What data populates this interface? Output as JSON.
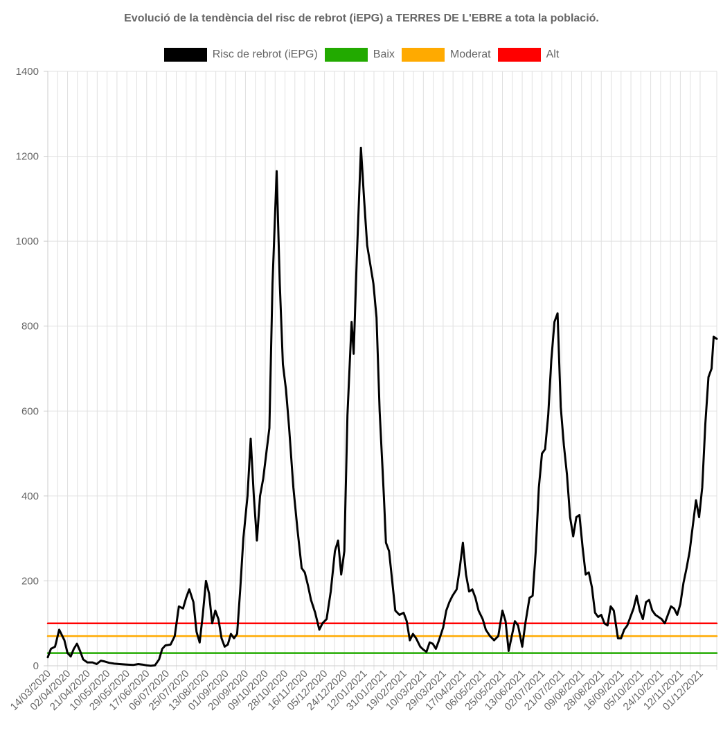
{
  "chart_data": {
    "type": "line",
    "title": "Evolució de la tendència del risc de rebrot (iEPG) a TERRES DE L'EBRE a tota la població.",
    "xlabel": "",
    "ylabel": "",
    "ylim": [
      0,
      1400
    ],
    "yticks": [
      0,
      200,
      400,
      600,
      800,
      1000,
      1200,
      1400
    ],
    "grid": true,
    "legend_position": "top",
    "x_range": [
      "14/03/2020",
      "17/12/2021"
    ],
    "x_tick_labels": [
      "14/03/2020",
      "02/04/2020",
      "21/04/2020",
      "10/05/2020",
      "29/05/2020",
      "17/06/2020",
      "06/07/2020",
      "25/07/2020",
      "13/08/2020",
      "01/09/2020",
      "20/09/2020",
      "09/10/2020",
      "28/10/2020",
      "16/11/2020",
      "05/12/2020",
      "24/12/2020",
      "12/01/2021",
      "31/01/2021",
      "19/02/2021",
      "10/03/2021",
      "29/03/2021",
      "17/04/2021",
      "06/05/2021",
      "25/05/2021",
      "13/06/2021",
      "02/07/2021",
      "21/07/2021",
      "09/08/2021",
      "28/08/2021",
      "16/09/2021",
      "05/10/2021",
      "24/10/2021",
      "12/11/2021",
      "01/12/2021"
    ],
    "series": [
      {
        "name": "Risc de rebrot (iEPG)",
        "color": "#000000",
        "points": [
          [
            "14/03/2020",
            20
          ],
          [
            "17/03/2020",
            40
          ],
          [
            "21/03/2020",
            45
          ],
          [
            "25/03/2020",
            85
          ],
          [
            "30/03/2020",
            60
          ],
          [
            "02/04/2020",
            30
          ],
          [
            "05/04/2020",
            22
          ],
          [
            "08/04/2020",
            40
          ],
          [
            "11/04/2020",
            52
          ],
          [
            "14/04/2020",
            35
          ],
          [
            "17/04/2020",
            15
          ],
          [
            "21/04/2020",
            8
          ],
          [
            "26/04/2020",
            8
          ],
          [
            "30/04/2020",
            4
          ],
          [
            "04/05/2020",
            12
          ],
          [
            "08/05/2020",
            10
          ],
          [
            "12/05/2020",
            7
          ],
          [
            "17/05/2020",
            5
          ],
          [
            "22/05/2020",
            4
          ],
          [
            "29/05/2020",
            3
          ],
          [
            "04/06/2020",
            2
          ],
          [
            "09/06/2020",
            4
          ],
          [
            "13/06/2020",
            3
          ],
          [
            "17/06/2020",
            1
          ],
          [
            "21/06/2020",
            0
          ],
          [
            "25/06/2020",
            1
          ],
          [
            "29/06/2020",
            15
          ],
          [
            "02/07/2020",
            40
          ],
          [
            "05/07/2020",
            48
          ],
          [
            "10/07/2020",
            50
          ],
          [
            "14/07/2020",
            70
          ],
          [
            "18/07/2020",
            140
          ],
          [
            "22/07/2020",
            135
          ],
          [
            "25/07/2020",
            160
          ],
          [
            "28/07/2020",
            180
          ],
          [
            "01/08/2020",
            150
          ],
          [
            "04/08/2020",
            80
          ],
          [
            "07/08/2020",
            55
          ],
          [
            "10/08/2020",
            120
          ],
          [
            "13/08/2020",
            200
          ],
          [
            "16/08/2020",
            170
          ],
          [
            "19/08/2020",
            100
          ],
          [
            "22/08/2020",
            130
          ],
          [
            "25/08/2020",
            110
          ],
          [
            "28/08/2020",
            65
          ],
          [
            "31/08/2020",
            45
          ],
          [
            "03/09/2020",
            50
          ],
          [
            "06/09/2020",
            75
          ],
          [
            "09/09/2020",
            65
          ],
          [
            "12/09/2020",
            75
          ],
          [
            "15/09/2020",
            180
          ],
          [
            "18/09/2020",
            300
          ],
          [
            "22/09/2020",
            400
          ],
          [
            "25/09/2020",
            535
          ],
          [
            "28/09/2020",
            400
          ],
          [
            "01/10/2020",
            295
          ],
          [
            "04/10/2020",
            400
          ],
          [
            "07/10/2020",
            440
          ],
          [
            "10/10/2020",
            500
          ],
          [
            "13/10/2020",
            560
          ],
          [
            "16/10/2020",
            900
          ],
          [
            "20/10/2020",
            1165
          ],
          [
            "23/10/2020",
            900
          ],
          [
            "26/10/2020",
            710
          ],
          [
            "29/10/2020",
            650
          ],
          [
            "01/11/2020",
            560
          ],
          [
            "05/11/2020",
            420
          ],
          [
            "09/11/2020",
            320
          ],
          [
            "13/11/2020",
            230
          ],
          [
            "16/11/2020",
            220
          ],
          [
            "19/11/2020",
            190
          ],
          [
            "22/11/2020",
            155
          ],
          [
            "26/11/2020",
            125
          ],
          [
            "30/11/2020",
            85
          ],
          [
            "03/12/2020",
            100
          ],
          [
            "07/12/2020",
            110
          ],
          [
            "11/12/2020",
            175
          ],
          [
            "15/12/2020",
            270
          ],
          [
            "18/12/2020",
            295
          ],
          [
            "21/12/2020",
            215
          ],
          [
            "24/12/2020",
            270
          ],
          [
            "27/12/2020",
            590
          ],
          [
            "31/12/2020",
            810
          ],
          [
            "02/01/2021",
            735
          ],
          [
            "05/01/2021",
            960
          ],
          [
            "09/01/2021",
            1220
          ],
          [
            "12/01/2021",
            1100
          ],
          [
            "15/01/2021",
            990
          ],
          [
            "18/01/2021",
            945
          ],
          [
            "21/01/2021",
            900
          ],
          [
            "24/01/2021",
            820
          ],
          [
            "27/01/2021",
            600
          ],
          [
            "31/01/2021",
            400
          ],
          [
            "02/02/2021",
            290
          ],
          [
            "05/02/2021",
            270
          ],
          [
            "08/02/2021",
            200
          ],
          [
            "11/02/2021",
            130
          ],
          [
            "15/02/2021",
            120
          ],
          [
            "19/02/2021",
            125
          ],
          [
            "22/02/2021",
            105
          ],
          [
            "25/02/2021",
            60
          ],
          [
            "28/02/2021",
            75
          ],
          [
            "03/03/2021",
            65
          ],
          [
            "07/03/2021",
            45
          ],
          [
            "10/03/2021",
            38
          ],
          [
            "13/03/2021",
            33
          ],
          [
            "16/03/2021",
            55
          ],
          [
            "19/03/2021",
            52
          ],
          [
            "22/03/2021",
            40
          ],
          [
            "25/03/2021",
            60
          ],
          [
            "29/03/2021",
            90
          ],
          [
            "01/04/2021",
            130
          ],
          [
            "04/04/2021",
            150
          ],
          [
            "07/04/2021",
            165
          ],
          [
            "11/04/2021",
            180
          ],
          [
            "14/04/2021",
            230
          ],
          [
            "17/04/2021",
            290
          ],
          [
            "20/04/2021",
            215
          ],
          [
            "23/04/2021",
            175
          ],
          [
            "26/04/2021",
            180
          ],
          [
            "29/04/2021",
            160
          ],
          [
            "02/05/2021",
            130
          ],
          [
            "06/05/2021",
            110
          ],
          [
            "09/05/2021",
            85
          ],
          [
            "13/05/2021",
            70
          ],
          [
            "17/05/2021",
            60
          ],
          [
            "21/05/2021",
            70
          ],
          [
            "25/05/2021",
            130
          ],
          [
            "28/05/2021",
            105
          ],
          [
            "31/05/2021",
            35
          ],
          [
            "03/06/2021",
            70
          ],
          [
            "06/06/2021",
            105
          ],
          [
            "09/06/2021",
            95
          ],
          [
            "13/06/2021",
            45
          ],
          [
            "16/06/2021",
            100
          ],
          [
            "20/06/2021",
            160
          ],
          [
            "23/06/2021",
            165
          ],
          [
            "26/06/2021",
            270
          ],
          [
            "29/06/2021",
            420
          ],
          [
            "02/07/2021",
            500
          ],
          [
            "05/07/2021",
            510
          ],
          [
            "08/07/2021",
            590
          ],
          [
            "11/07/2021",
            720
          ],
          [
            "14/07/2021",
            810
          ],
          [
            "17/07/2021",
            830
          ],
          [
            "20/07/2021",
            610
          ],
          [
            "23/07/2021",
            520
          ],
          [
            "26/07/2021",
            450
          ],
          [
            "29/07/2021",
            350
          ],
          [
            "01/08/2021",
            305
          ],
          [
            "04/08/2021",
            350
          ],
          [
            "07/08/2021",
            355
          ],
          [
            "10/08/2021",
            280
          ],
          [
            "13/08/2021",
            215
          ],
          [
            "16/08/2021",
            220
          ],
          [
            "19/08/2021",
            185
          ],
          [
            "22/08/2021",
            125
          ],
          [
            "25/08/2021",
            115
          ],
          [
            "28/08/2021",
            120
          ],
          [
            "31/08/2021",
            100
          ],
          [
            "03/09/2021",
            95
          ],
          [
            "06/09/2021",
            140
          ],
          [
            "09/09/2021",
            130
          ],
          [
            "13/09/2021",
            65
          ],
          [
            "16/09/2021",
            65
          ],
          [
            "19/09/2021",
            85
          ],
          [
            "22/09/2021",
            95
          ],
          [
            "25/09/2021",
            115
          ],
          [
            "28/09/2021",
            135
          ],
          [
            "01/10/2021",
            165
          ],
          [
            "04/10/2021",
            130
          ],
          [
            "07/10/2021",
            110
          ],
          [
            "10/10/2021",
            150
          ],
          [
            "13/10/2021",
            155
          ],
          [
            "16/10/2021",
            130
          ],
          [
            "19/10/2021",
            120
          ],
          [
            "22/10/2021",
            115
          ],
          [
            "25/10/2021",
            110
          ],
          [
            "28/10/2021",
            100
          ],
          [
            "31/10/2021",
            120
          ],
          [
            "03/11/2021",
            140
          ],
          [
            "06/11/2021",
            135
          ],
          [
            "09/11/2021",
            120
          ],
          [
            "12/11/2021",
            145
          ],
          [
            "15/11/2021",
            195
          ],
          [
            "18/11/2021",
            230
          ],
          [
            "21/11/2021",
            270
          ],
          [
            "24/11/2021",
            330
          ],
          [
            "27/11/2021",
            390
          ],
          [
            "30/11/2021",
            350
          ],
          [
            "03/12/2021",
            420
          ],
          [
            "06/12/2021",
            570
          ],
          [
            "09/12/2021",
            680
          ],
          [
            "12/12/2021",
            700
          ],
          [
            "14/12/2021",
            775
          ],
          [
            "17/12/2021",
            770
          ]
        ]
      },
      {
        "name": "Baix",
        "color": "#22aa00",
        "points": [
          [
            "14/03/2020",
            30
          ],
          [
            "17/12/2021",
            30
          ]
        ]
      },
      {
        "name": "Moderat",
        "color": "#ffaa00",
        "points": [
          [
            "14/03/2020",
            70
          ],
          [
            "17/12/2021",
            70
          ]
        ]
      },
      {
        "name": "Alt",
        "color": "#ff0000",
        "points": [
          [
            "14/03/2020",
            100
          ],
          [
            "17/12/2021",
            100
          ]
        ]
      }
    ]
  }
}
